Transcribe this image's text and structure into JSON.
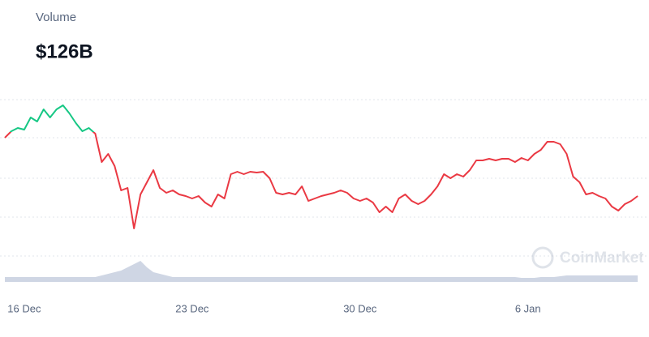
{
  "header": {
    "label": "Volume",
    "value": "$126B"
  },
  "chart_data": {
    "type": "line",
    "categories": [
      null,
      null,
      null,
      "16 Dec",
      null,
      null,
      null,
      null,
      null,
      null,
      null,
      null,
      null,
      null,
      null,
      null,
      null,
      null,
      null,
      null,
      null,
      null,
      null,
      null,
      null,
      null,
      null,
      null,
      null,
      "23 Dec",
      null,
      null,
      null,
      null,
      null,
      null,
      null,
      null,
      null,
      null,
      null,
      null,
      null,
      null,
      null,
      null,
      null,
      null,
      null,
      null,
      null,
      null,
      null,
      null,
      null,
      "30 Dec",
      null,
      null,
      null,
      null,
      null,
      null,
      null,
      null,
      null,
      null,
      null,
      null,
      null,
      null,
      null,
      null,
      null,
      null,
      null,
      null,
      null,
      null,
      null,
      null,
      null,
      "6 Jan",
      null,
      null,
      null,
      null,
      null,
      null,
      null,
      null,
      null,
      null,
      null,
      null,
      null,
      null,
      null,
      null,
      null
    ],
    "values": [
      230,
      238,
      242,
      240,
      255,
      250,
      265,
      255,
      265,
      270,
      260,
      248,
      238,
      242,
      235,
      200,
      210,
      195,
      165,
      168,
      118,
      160,
      175,
      190,
      168,
      162,
      165,
      160,
      158,
      155,
      158,
      150,
      145,
      160,
      155,
      185,
      188,
      185,
      188,
      187,
      188,
      180,
      162,
      160,
      162,
      160,
      170,
      152,
      155,
      158,
      160,
      162,
      165,
      162,
      155,
      152,
      155,
      150,
      138,
      145,
      138,
      155,
      160,
      152,
      148,
      152,
      160,
      170,
      185,
      180,
      185,
      182,
      190,
      202,
      202,
      204,
      202,
      204,
      204,
      200,
      205,
      202,
      210,
      215,
      225,
      225,
      222,
      210,
      182,
      175,
      160,
      162,
      158,
      155,
      145,
      140,
      148,
      152,
      158
    ],
    "baseline": 237,
    "up_color": "#16c784",
    "down_color": "#ea3943",
    "ylim": [
      100,
      300
    ],
    "volume": [
      6,
      6,
      6,
      6,
      6,
      6,
      6,
      6,
      6,
      6,
      6,
      6,
      6,
      6,
      6,
      8,
      10,
      12,
      14,
      18,
      22,
      26,
      18,
      12,
      10,
      8,
      6,
      6,
      6,
      6,
      6,
      6,
      6,
      6,
      6,
      6,
      6,
      6,
      6,
      6,
      6,
      6,
      6,
      6,
      6,
      6,
      6,
      6,
      6,
      6,
      6,
      6,
      6,
      6,
      6,
      6,
      6,
      6,
      6,
      6,
      6,
      6,
      6,
      6,
      6,
      6,
      6,
      6,
      6,
      6,
      6,
      6,
      6,
      6,
      6,
      6,
      6,
      6,
      6,
      6,
      5,
      5,
      5,
      6,
      6,
      6,
      7,
      8,
      8,
      8,
      8,
      8,
      8,
      8,
      8,
      8,
      8,
      8,
      8
    ],
    "volume_lim": [
      0,
      50
    ],
    "volume_color": "#cfd6e4",
    "grid": true,
    "watermark": "CoinMarket"
  }
}
